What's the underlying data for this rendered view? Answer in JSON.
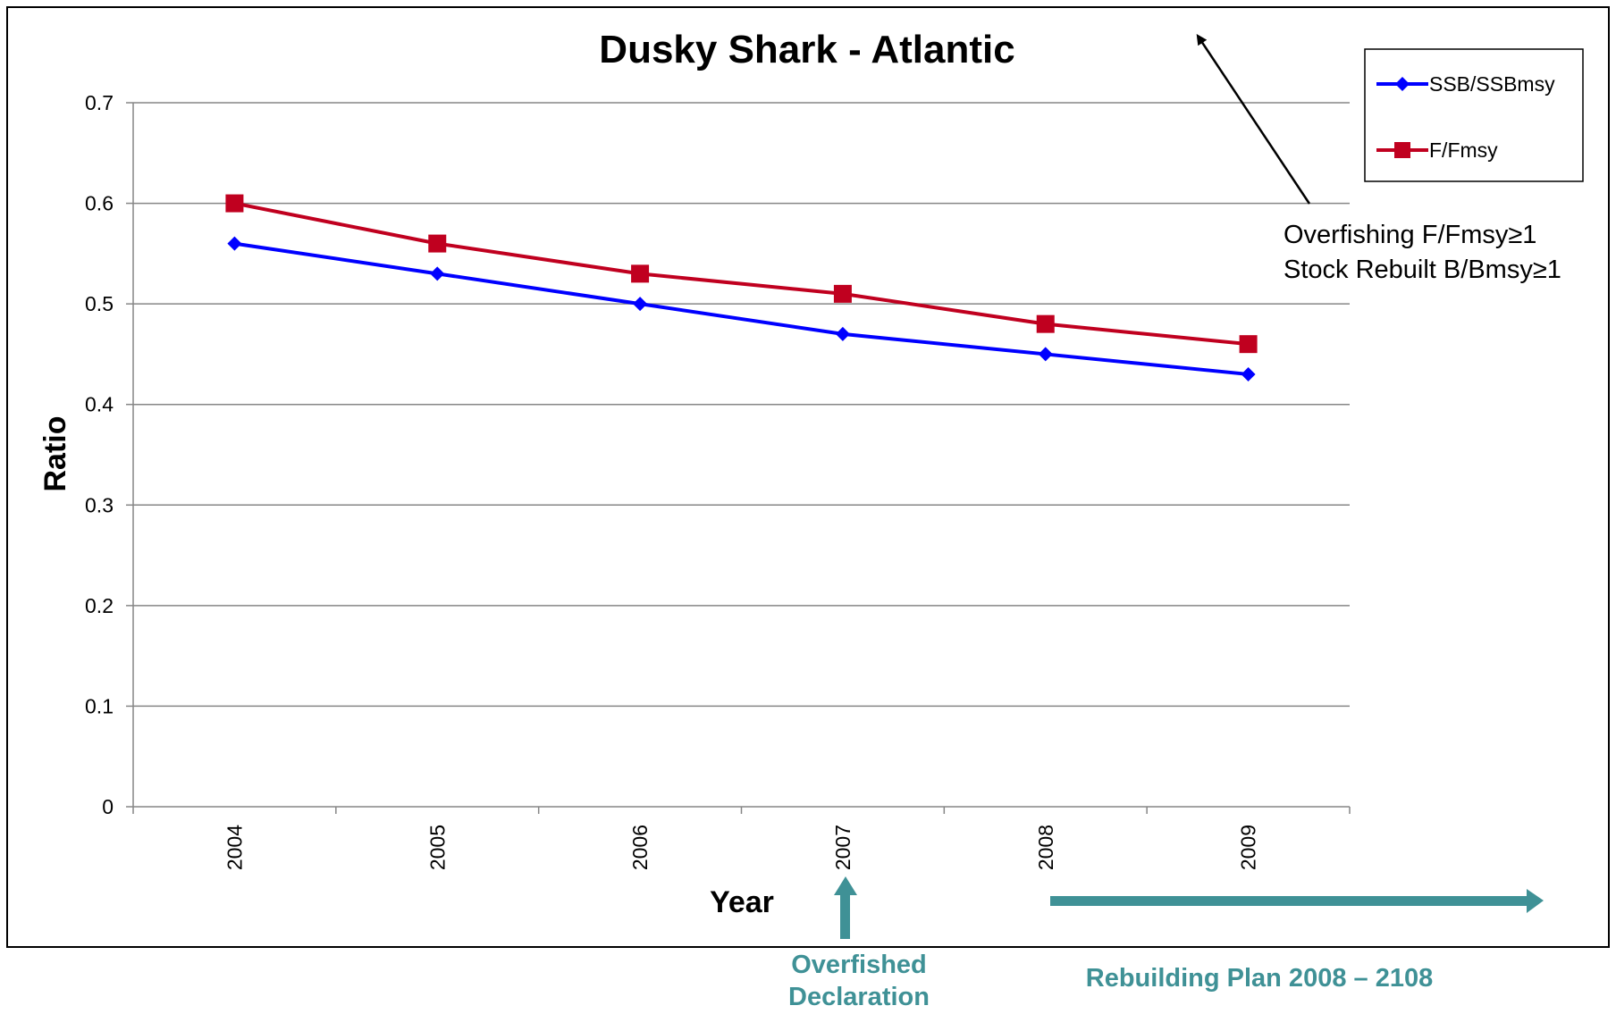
{
  "chart_data": {
    "type": "line",
    "title": "Dusky Shark - Atlantic",
    "xlabel": "Year",
    "ylabel": "Ratio",
    "categories": [
      "2004",
      "2005",
      "2006",
      "2007",
      "2008",
      "2009"
    ],
    "ylim": [
      0,
      0.7
    ],
    "y_ticks": [
      "0",
      "0.1",
      "0.2",
      "0.3",
      "0.4",
      "0.5",
      "0.6",
      "0.7"
    ],
    "grid": "horizontal",
    "legend_position": "top-right",
    "series": [
      {
        "name": "SSB/SSBmsy",
        "color": "#0000FF",
        "marker": "diamond",
        "values": [
          0.56,
          0.53,
          0.5,
          0.47,
          0.45,
          0.43
        ]
      },
      {
        "name": "F/Fmsy",
        "color": "#C0001F",
        "marker": "square",
        "values": [
          0.6,
          0.56,
          0.53,
          0.51,
          0.48,
          0.46
        ]
      }
    ],
    "annotations": {
      "thresholds": [
        "Overfishing F/Fmsy≥1",
        "Stock Rebuilt B/Bmsy≥1"
      ],
      "overfished_lines": [
        "Overfished",
        "Declaration"
      ],
      "rebuilding_plan": "Rebuilding Plan 2008 – 2108",
      "accent_color": "#3F9196"
    }
  }
}
